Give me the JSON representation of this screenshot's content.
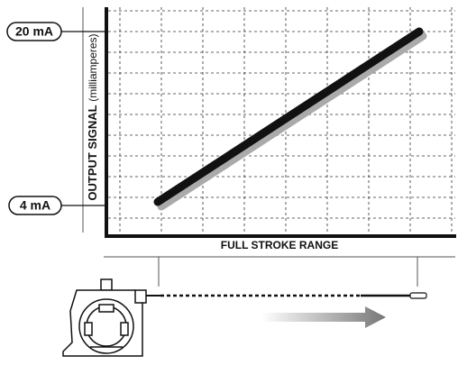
{
  "labels": {
    "top_signal": "20 mA",
    "bottom_signal": "4 mA",
    "y_axis": "OUTPUT SIGNAL",
    "y_axis_unit": "(milliamperes)",
    "x_axis": "FULL STROKE RANGE"
  }
}
